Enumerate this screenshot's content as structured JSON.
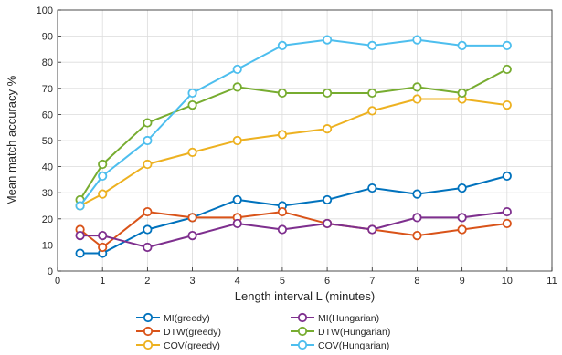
{
  "chart_data": {
    "type": "line",
    "xlabel": "Length interval L (minutes)",
    "ylabel": "Mean match accuracy %",
    "xlim": [
      0,
      11
    ],
    "ylim": [
      0,
      100
    ],
    "xticks": [
      0,
      1,
      2,
      3,
      4,
      5,
      6,
      7,
      8,
      9,
      10,
      11
    ],
    "yticks": [
      0,
      10,
      20,
      30,
      40,
      50,
      60,
      70,
      80,
      90,
      100
    ],
    "grid": true,
    "legend_placement": "bottom",
    "x": [
      0.5,
      1,
      2,
      3,
      4,
      5,
      6,
      7,
      8,
      9,
      10
    ],
    "series": [
      {
        "name": "MI(greedy)",
        "color": "#0072BD",
        "values": [
          6.8,
          6.8,
          15.9,
          20.5,
          27.3,
          25.0,
          27.3,
          31.8,
          29.5,
          31.8,
          36.4
        ]
      },
      {
        "name": "DTW(greedy)",
        "color": "#D95319",
        "values": [
          15.9,
          9.1,
          22.7,
          20.5,
          20.5,
          22.7,
          18.2,
          15.9,
          13.6,
          15.9,
          18.2
        ]
      },
      {
        "name": "COV(greedy)",
        "color": "#EDB120",
        "values": [
          25.0,
          29.5,
          40.9,
          45.5,
          50.0,
          52.3,
          54.5,
          61.4,
          65.9,
          65.9,
          63.6
        ]
      },
      {
        "name": "MI(Hungarian)",
        "color": "#7E2F8E",
        "values": [
          13.6,
          13.6,
          9.1,
          13.6,
          18.2,
          15.9,
          18.2,
          15.9,
          20.5,
          20.5,
          22.7
        ]
      },
      {
        "name": "DTW(Hungarian)",
        "color": "#77AC30",
        "values": [
          27.3,
          40.9,
          56.8,
          63.6,
          70.5,
          68.2,
          68.2,
          68.2,
          70.5,
          68.2,
          77.3
        ]
      },
      {
        "name": "COV(Hungarian)",
        "color": "#4DBEEE",
        "values": [
          25.0,
          36.4,
          50.0,
          68.2,
          77.3,
          86.4,
          88.6,
          86.4,
          88.6,
          86.4,
          86.4
        ]
      }
    ]
  }
}
